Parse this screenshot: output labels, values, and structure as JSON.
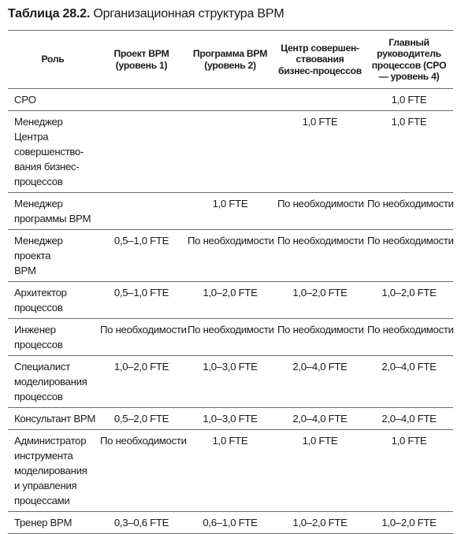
{
  "caption": {
    "number": "Таблица 28.2.",
    "title": "Организационная структура BPM"
  },
  "table": {
    "headers": [
      "Роль",
      "Проект BPM (уровень 1)",
      "Программа BPM (уровень 2)",
      "Центр совершен-ствования бизнес-процессов",
      "Главный руководитель процессов (CPO — уровень 4)"
    ],
    "rows": [
      {
        "role": "CPO",
        "l1": "",
        "l2": "",
        "coe": "",
        "cpo": "1,0 FTE"
      },
      {
        "role": "Менеджер Центра\nсовершенство-\nвания бизнес-\nпроцессов",
        "l1": "",
        "l2": "",
        "coe": "1,0 FTE",
        "cpo": "1,0 FTE"
      },
      {
        "role": "Менеджер\nпрограммы BPM",
        "l1": "",
        "l2": "1,0 FTE",
        "coe": "По необходимости",
        "cpo": "По необходимости"
      },
      {
        "role": "Менеджер проекта\nBPM",
        "l1": "0,5–1,0 FTE",
        "l2": "По\nнеобходимости",
        "coe": "По необходимости",
        "cpo": "По необходимости"
      },
      {
        "role": "Архитектор\nпроцессов",
        "l1": "0,5–1,0 FTE",
        "l2": "1,0–2,0 FTE",
        "coe": "1,0–2,0 FTE",
        "cpo": "1,0–2,0 FTE"
      },
      {
        "role": "Инженер\nпроцессов",
        "l1": "По необходимости",
        "l2": "По\nнеобходимости",
        "coe": "По необходимости",
        "cpo": "По необходимости"
      },
      {
        "role": "Специалист\nмоделирования\nпроцессов",
        "l1": "1,0–2,0 FTE",
        "l2": "1,0–3,0 FTE",
        "coe": "2,0–4,0 FTE",
        "cpo": "2,0–4,0 FTE"
      },
      {
        "role": "Консультант BPM",
        "l1": "0,5–2,0 FTE",
        "l2": "1,0–3,0 FTE",
        "coe": "2,0–4,0 FTE",
        "cpo": "2,0–4,0 FTE"
      },
      {
        "role": "Администратор\nинструмента\nмоделирования\nи управления\nпроцессами",
        "l1": "По\nнеобходимости",
        "l2": "1,0 FTE",
        "coe": "1,0 FTE",
        "cpo": "1,0 FTE"
      },
      {
        "role": "Тренер BPM",
        "l1": "0,3–0,6 FTE",
        "l2": "0,6–1,0 FTE",
        "coe": "1,0–2,0 FTE",
        "cpo": "1,0–2,0 FTE"
      }
    ]
  }
}
